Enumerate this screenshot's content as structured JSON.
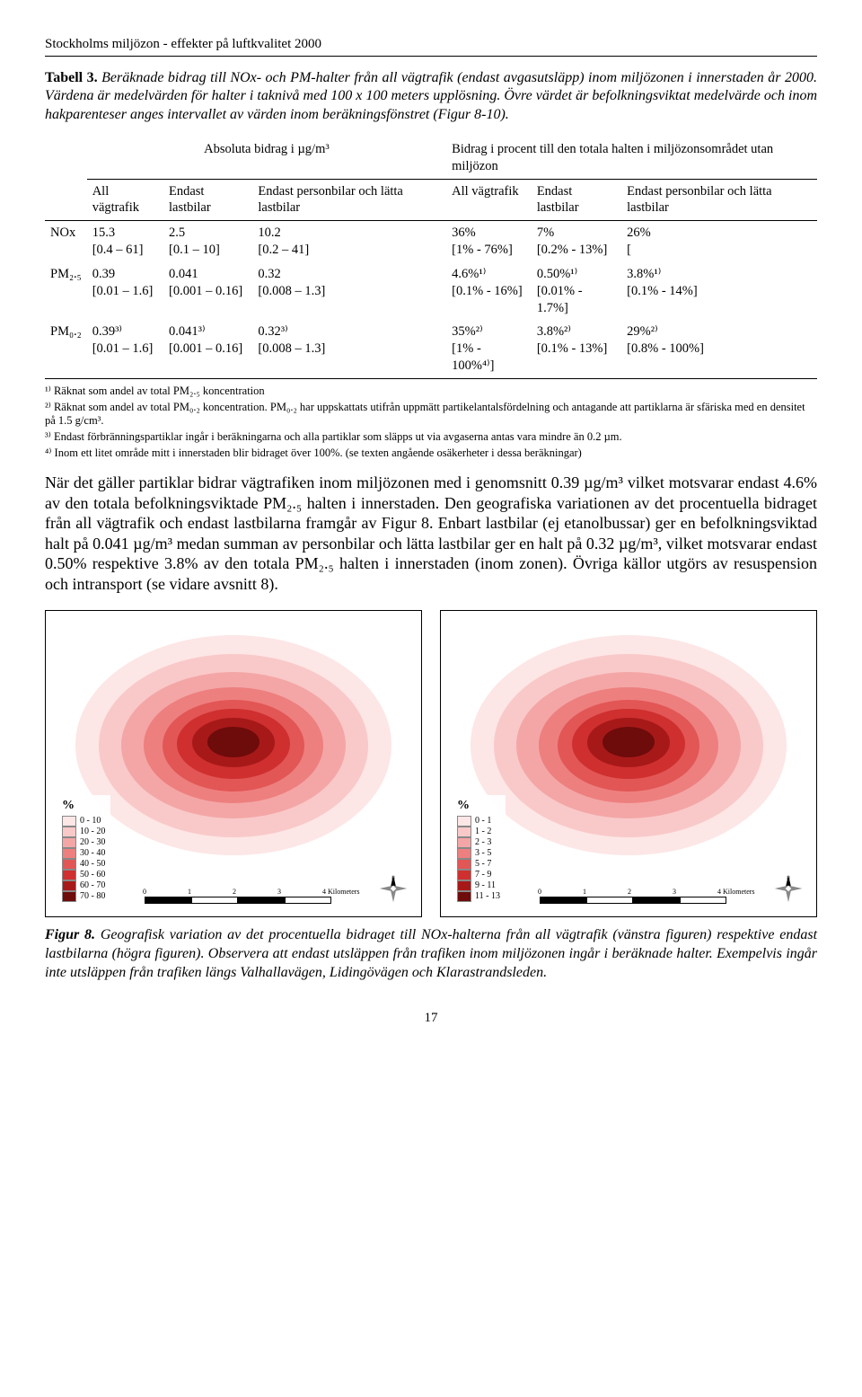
{
  "header": "Stockholms miljözon - effekter på luftkvalitet 2000",
  "table_caption": {
    "label": "Tabell 3.",
    "text": "Beräknade bidrag till NOx- och PM-halter från all vägtrafik (endast avgasutsläpp) inom miljözonen i innerstaden år 2000. Värdena är medelvärden för halter i taknivå med 100 x 100 meters upplösning. Övre värdet är befolkningsviktat medelvärde och inom hakparenteser anges intervallet av värden inom beräkningsfönstret (Figur 8-10)."
  },
  "table": {
    "group_heads": {
      "left": "Absoluta bidrag i µg/m³",
      "right": "Bidrag i procent till den totala halten i miljözonsområdet utan miljözon"
    },
    "col_heads": [
      "",
      "All vägtrafik",
      "Endast lastbilar",
      "Endast personbilar och lätta lastbilar",
      "All vägtrafik",
      "Endast lastbilar",
      "Endast personbilar och lätta lastbilar"
    ],
    "rows": [
      {
        "label": "NOx",
        "cells": [
          {
            "top": "15.3",
            "sub": "[0.4 – 61]"
          },
          {
            "top": "2.5",
            "sub": "[0.1 – 10]"
          },
          {
            "top": "10.2",
            "sub": "[0.2 – 41]"
          },
          {
            "top": "36%",
            "sub": "[1% - 76%]"
          },
          {
            "top": "7%",
            "sub": "[0.2% - 13%]"
          },
          {
            "top": "26%",
            "sub": "["
          }
        ]
      },
      {
        "label": "PM₂.₅",
        "cells": [
          {
            "top": "0.39",
            "sub": "[0.01 – 1.6]"
          },
          {
            "top": "0.041",
            "sub": "[0.001 – 0.16]"
          },
          {
            "top": "0.32",
            "sub": "[0.008 – 1.3]"
          },
          {
            "top": "4.6%¹⁾",
            "sub": "[0.1% - 16%]"
          },
          {
            "top": "0.50%¹⁾",
            "sub": "[0.01% - 1.7%]"
          },
          {
            "top": "3.8%¹⁾",
            "sub": "[0.1% - 14%]"
          }
        ]
      },
      {
        "label": "PM₀.₂",
        "cells": [
          {
            "top": "0.39³⁾",
            "sub": "[0.01 – 1.6]"
          },
          {
            "top": "0.041³⁾",
            "sub": "[0.001 – 0.16]"
          },
          {
            "top": "0.32³⁾",
            "sub": "[0.008 – 1.3]"
          },
          {
            "top": "35%²⁾",
            "sub": "[1% - 100%⁴⁾]"
          },
          {
            "top": "3.8%²⁾",
            "sub": "[0.1% - 13%]"
          },
          {
            "top": "29%²⁾",
            "sub": "[0.8% - 100%]"
          }
        ]
      }
    ]
  },
  "footnotes": [
    "¹⁾ Räknat som andel av total PM₂.₅ koncentration",
    "²⁾ Räknat som andel av total PM₀.₂ koncentration. PM₀.₂ har uppskattats utifrån uppmätt partikelantalsfördelning och antagande att partiklarna är sfäriska med en densitet på 1.5 g/cm³.",
    "³⁾ Endast förbränningspartiklar ingår i beräkningarna och alla partiklar som släpps ut via avgaserna antas vara mindre än 0.2 µm.",
    "⁴⁾ Inom ett litet område mitt i innerstaden blir bidraget över 100%. (se texten angående osäkerheter i dessa beräkningar)"
  ],
  "body_para": "När det gäller partiklar bidrar vägtrafiken inom miljözonen med i genomsnitt 0.39 µg/m³ vilket motsvarar endast 4.6% av den totala befolkningsviktade PM₂.₅ halten i innerstaden. Den geografiska variationen av det procentuella bidraget från all vägtrafik och endast lastbilarna framgår av Figur 8. Enbart lastbilar (ej etanolbussar) ger en befolkningsviktad halt på 0.041 µg/m³ medan summan av personbilar och lätta lastbilar ger en halt på 0.32 µg/m³, vilket motsvarar endast 0.50% respektive 3.8% av den totala PM₂.₅ halten i innerstaden (inom zonen). Övriga källor utgörs av resuspension och intransport (se vidare avsnitt 8).",
  "maps": {
    "left": {
      "legend_title": "%",
      "ramp": [
        {
          "label": "0 - 10",
          "color": "#fde6e6"
        },
        {
          "label": "10 - 20",
          "color": "#f9c9c9"
        },
        {
          "label": "20 - 30",
          "color": "#f4a6a6"
        },
        {
          "label": "30 - 40",
          "color": "#ee7f7f"
        },
        {
          "label": "40 - 50",
          "color": "#e25656"
        },
        {
          "label": "50 - 60",
          "color": "#cf2f2f"
        },
        {
          "label": "60 - 70",
          "color": "#a71919"
        },
        {
          "label": "70 - 80",
          "color": "#6e0b0b"
        }
      ],
      "scale_labels": [
        "0",
        "1",
        "2",
        "3",
        "4  Kilometers"
      ]
    },
    "right": {
      "legend_title": "%",
      "ramp": [
        {
          "label": "0 - 1",
          "color": "#fde6e6"
        },
        {
          "label": "1 - 2",
          "color": "#f9c9c9"
        },
        {
          "label": "2 - 3",
          "color": "#f4a6a6"
        },
        {
          "label": "3 - 5",
          "color": "#ee7f7f"
        },
        {
          "label": "5 - 7",
          "color": "#e25656"
        },
        {
          "label": "7 - 9",
          "color": "#cf2f2f"
        },
        {
          "label": "9 - 11",
          "color": "#a71919"
        },
        {
          "label": "11 - 13",
          "color": "#6e0b0b"
        }
      ],
      "scale_labels": [
        "0",
        "1",
        "2",
        "3",
        "4  Kilometers"
      ]
    }
  },
  "figure_caption": {
    "label": "Figur 8.",
    "text": "Geografisk variation av det procentuella bidraget till NOx-halterna från all vägtrafik (vänstra figuren) respektive endast lastbilarna (högra figuren). Observera att endast utsläppen från trafiken inom miljözonen ingår i beräknade halter. Exempelvis ingår inte utsläppen från trafiken längs Valhallavägen, Lidingövägen och Klarastrandsleden."
  },
  "page_number": "17"
}
